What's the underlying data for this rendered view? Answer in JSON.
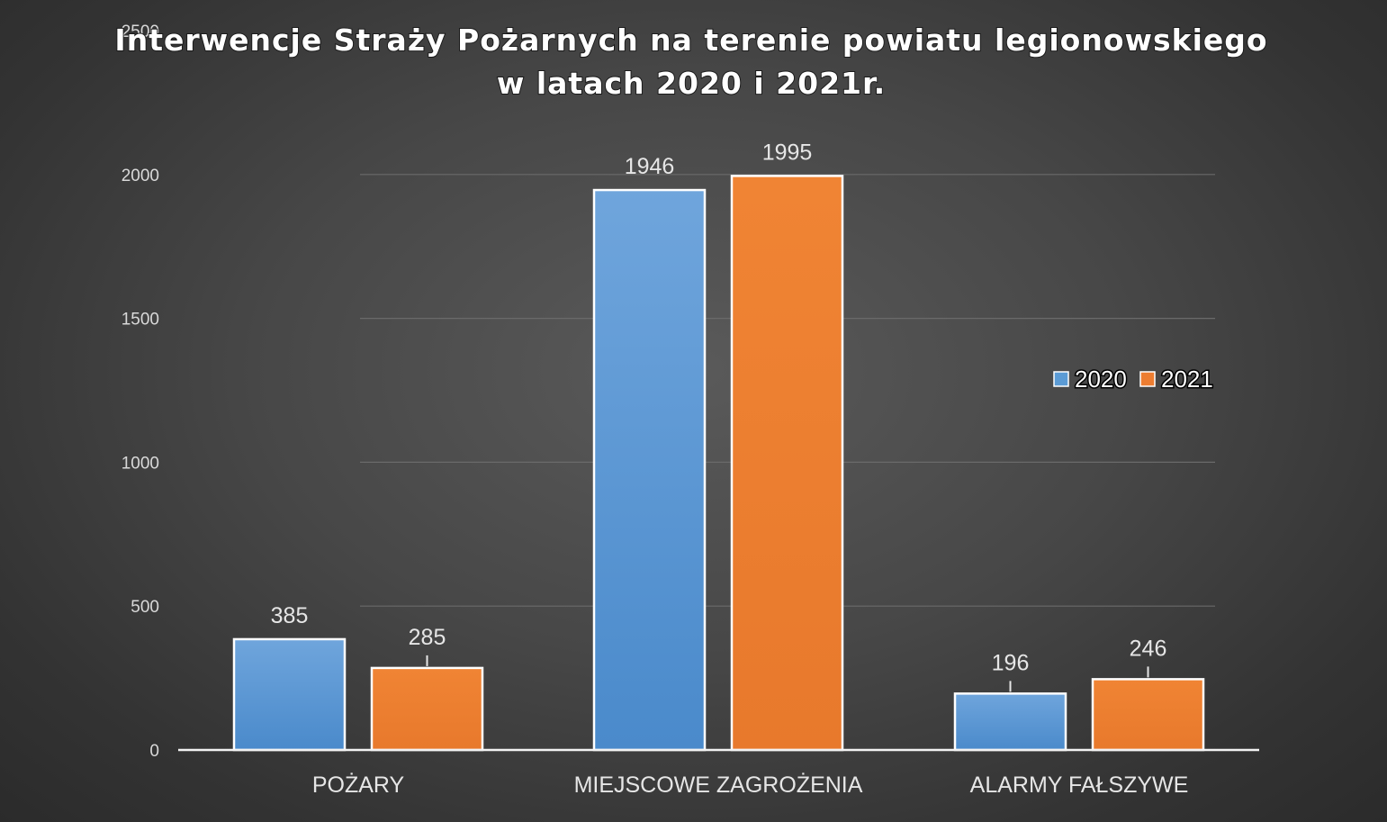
{
  "chart_data": {
    "type": "bar",
    "title_lines": [
      "Interwencje Straży Pożarnych na terenie powiatu legionowskiego",
      "w latach 2020 i 2021r."
    ],
    "categories": [
      "POŻARY",
      "MIEJSCOWE ZAGROŻENIA",
      "ALARMY FAŁSZYWE"
    ],
    "series": [
      {
        "name": "2020",
        "values": [
          385,
          1946,
          196
        ],
        "color": "#5b9bd5"
      },
      {
        "name": "2021",
        "values": [
          285,
          1995,
          246
        ],
        "color": "#ed7d31"
      }
    ],
    "ylim": [
      0,
      2500
    ],
    "yticks": [
      0,
      500,
      1000,
      1500,
      2000,
      2500
    ],
    "grid": true,
    "legend_position": "right",
    "xlabel": "",
    "ylabel": ""
  }
}
